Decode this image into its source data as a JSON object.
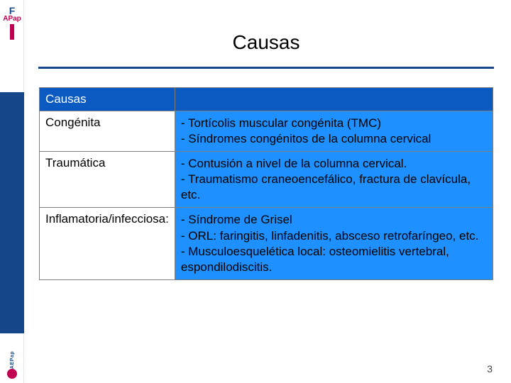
{
  "sidebar": {
    "logo_top_f": "F",
    "logo_top_ap": "APap",
    "logo_bottom": "AEPap"
  },
  "title": "Causas",
  "table": {
    "header_left": "Causas",
    "header_right": "",
    "col_styles": {
      "header_bg": "#0a5ac2",
      "header_color": "#ffffff",
      "cat_bg": "#ffffff",
      "desc_bg": "#1e90ff",
      "border_color": "#808080"
    },
    "rows": [
      {
        "category": "Congénita",
        "description": "- Tortícolis muscular congénita (TMC)\n- Síndromes congénitos de la columna cervical"
      },
      {
        "category": "Traumática",
        "description": "- Contusión a nivel de la columna cervical.\n- Traumatismo craneoencefálico, fractura de clavícula, etc."
      },
      {
        "category": "Inflamatoria/infecciosa:",
        "description": "- Síndrome de Grisel\n- ORL: faringitis, linfadenitis, absceso retrofaríngeo, etc.\n- Musculoesquelética local: osteomielitis vertebral, espondilodiscitis."
      }
    ]
  },
  "page_number": "3",
  "colors": {
    "accent_blue": "#16468a",
    "bright_blue": "#1e90ff",
    "header_blue": "#0a5ac2",
    "magenta": "#c00050"
  }
}
